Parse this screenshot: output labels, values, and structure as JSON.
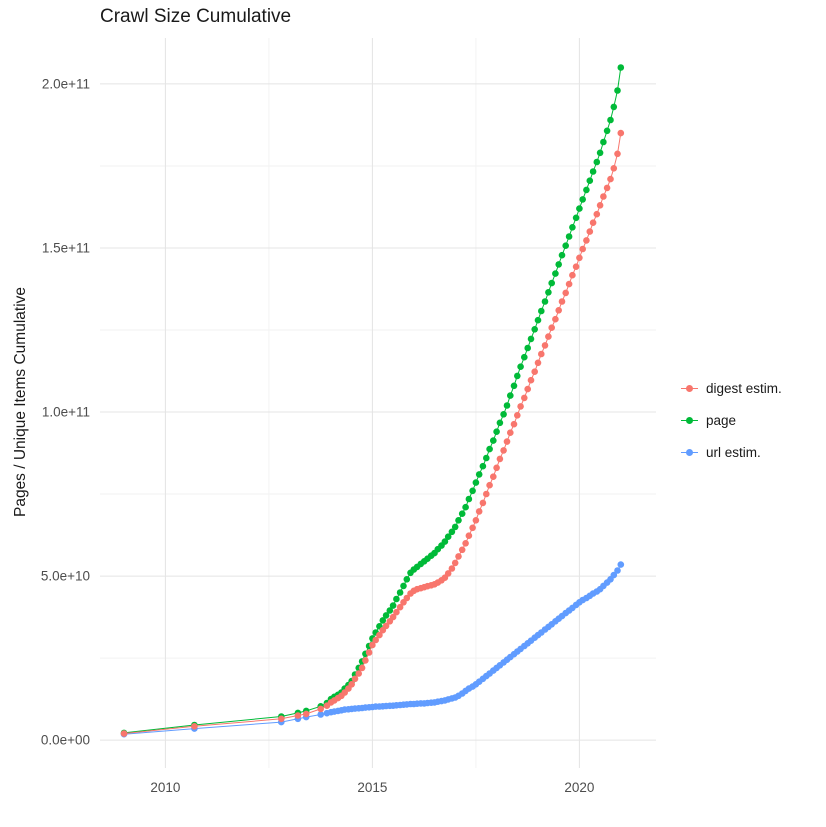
{
  "chart_data": {
    "type": "scatter",
    "title": "Crawl Size Cumulative",
    "xlabel": "",
    "ylabel": "Pages / Unique Items Cumulative",
    "legend_position": "right",
    "grid": true,
    "background": "#ffffff",
    "grid_major_color": "#E4E4E4",
    "grid_minor_color": "#F2F2F2",
    "tick_label_color": "#4D4D4D",
    "text_color": "#1A1A1A",
    "x_ticks": [
      2010,
      2015,
      2020
    ],
    "x_tick_labels": [
      "2010",
      "2015",
      "2020"
    ],
    "x_minor_ticks": [
      2012.5,
      2017.5
    ],
    "xlim": [
      2008.42,
      2021.85
    ],
    "y_unit_note": "y values stored in billions (1e9); axis labels shown in scientific notation",
    "y_ticks_billions": [
      0,
      50,
      100,
      150,
      200
    ],
    "y_tick_labels": [
      "0.0e+00",
      "5.0e+10",
      "1.0e+11",
      "1.5e+11",
      "2.0e+11"
    ],
    "y_minor_ticks_billions": [
      25,
      75,
      125,
      175
    ],
    "ylim_billions": [
      -8.5,
      214
    ],
    "series": [
      {
        "name": "digest estim.",
        "color": "#F8766D",
        "points": [
          [
            2009,
            2
          ],
          [
            2010.7,
            4.2
          ],
          [
            2012.8,
            6.5
          ],
          [
            2013.2,
            7.5
          ],
          [
            2013.4,
            8
          ],
          [
            2013.75,
            9.5
          ],
          [
            2013.9,
            10.5
          ],
          [
            2014,
            11.5
          ],
          [
            2014.08,
            12.1
          ],
          [
            2014.17,
            12.8
          ],
          [
            2014.25,
            13.5
          ],
          [
            2014.33,
            14.5
          ],
          [
            2014.42,
            15.7
          ],
          [
            2014.5,
            17
          ],
          [
            2014.58,
            18.7
          ],
          [
            2014.67,
            20.3
          ],
          [
            2014.75,
            22
          ],
          [
            2014.83,
            24.3
          ],
          [
            2014.92,
            26.7
          ],
          [
            2015,
            29
          ],
          [
            2015.08,
            30.5
          ],
          [
            2015.17,
            32
          ],
          [
            2015.25,
            33.5
          ],
          [
            2015.33,
            34.8
          ],
          [
            2015.42,
            36.2
          ],
          [
            2015.5,
            37.5
          ],
          [
            2015.58,
            39
          ],
          [
            2015.67,
            40.5
          ],
          [
            2015.75,
            42
          ],
          [
            2015.83,
            43.3
          ],
          [
            2015.92,
            44.7
          ],
          [
            2016,
            45.5
          ],
          [
            2016.08,
            46
          ],
          [
            2016.17,
            46.3
          ],
          [
            2016.25,
            46.6
          ],
          [
            2016.33,
            46.9
          ],
          [
            2016.42,
            47.2
          ],
          [
            2016.5,
            47.5
          ],
          [
            2016.58,
            48
          ],
          [
            2016.67,
            48.7
          ],
          [
            2016.75,
            49.5
          ],
          [
            2016.83,
            50.8
          ],
          [
            2016.92,
            52.3
          ],
          [
            2017,
            54
          ],
          [
            2017.08,
            56
          ],
          [
            2017.17,
            58
          ],
          [
            2017.25,
            60
          ],
          [
            2017.33,
            62.3
          ],
          [
            2017.42,
            64.7
          ],
          [
            2017.5,
            67
          ],
          [
            2017.58,
            69.7
          ],
          [
            2017.67,
            72.3
          ],
          [
            2017.75,
            75
          ],
          [
            2017.83,
            77.7
          ],
          [
            2017.92,
            80.3
          ],
          [
            2018,
            83
          ],
          [
            2018.08,
            85.7
          ],
          [
            2018.17,
            88.3
          ],
          [
            2018.25,
            91
          ],
          [
            2018.33,
            93.7
          ],
          [
            2018.42,
            96.3
          ],
          [
            2018.5,
            99
          ],
          [
            2018.58,
            101.7
          ],
          [
            2018.67,
            104.3
          ],
          [
            2018.75,
            107
          ],
          [
            2018.83,
            109.7
          ],
          [
            2018.92,
            112.3
          ],
          [
            2019,
            115
          ],
          [
            2019.08,
            117.7
          ],
          [
            2019.17,
            120.3
          ],
          [
            2019.25,
            123
          ],
          [
            2019.33,
            125.7
          ],
          [
            2019.42,
            128.3
          ],
          [
            2019.5,
            131
          ],
          [
            2019.58,
            133.7
          ],
          [
            2019.67,
            136.3
          ],
          [
            2019.75,
            139
          ],
          [
            2019.83,
            141.7
          ],
          [
            2019.92,
            144.3
          ],
          [
            2020,
            147
          ],
          [
            2020.08,
            149.7
          ],
          [
            2020.17,
            152.3
          ],
          [
            2020.25,
            155
          ],
          [
            2020.33,
            157.7
          ],
          [
            2020.42,
            160.3
          ],
          [
            2020.5,
            163
          ],
          [
            2020.58,
            165.7
          ],
          [
            2020.67,
            168.3
          ],
          [
            2020.75,
            171
          ],
          [
            2020.83,
            174.3
          ],
          [
            2020.92,
            178.7
          ],
          [
            2021,
            185
          ]
        ]
      },
      {
        "name": "page",
        "color": "#00BA38",
        "points": [
          [
            2009,
            2.2
          ],
          [
            2010.7,
            4.6
          ],
          [
            2012.8,
            7.2
          ],
          [
            2013.2,
            8.3
          ],
          [
            2013.4,
            8.9
          ],
          [
            2013.75,
            10.3
          ],
          [
            2013.9,
            11.3
          ],
          [
            2014,
            12.5
          ],
          [
            2014.08,
            13.2
          ],
          [
            2014.17,
            13.8
          ],
          [
            2014.25,
            14.5
          ],
          [
            2014.33,
            15.7
          ],
          [
            2014.42,
            16.8
          ],
          [
            2014.5,
            18
          ],
          [
            2014.58,
            20
          ],
          [
            2014.67,
            22
          ],
          [
            2014.75,
            24
          ],
          [
            2014.83,
            26.3
          ],
          [
            2014.92,
            28.7
          ],
          [
            2015,
            31
          ],
          [
            2015.08,
            32.8
          ],
          [
            2015.17,
            34.7
          ],
          [
            2015.25,
            36.5
          ],
          [
            2015.33,
            38
          ],
          [
            2015.42,
            39.5
          ],
          [
            2015.5,
            41
          ],
          [
            2015.58,
            43
          ],
          [
            2015.67,
            45
          ],
          [
            2015.75,
            47
          ],
          [
            2015.83,
            49
          ],
          [
            2015.92,
            51
          ],
          [
            2016,
            52
          ],
          [
            2016.08,
            52.8
          ],
          [
            2016.17,
            53.7
          ],
          [
            2016.25,
            54.5
          ],
          [
            2016.33,
            55.3
          ],
          [
            2016.42,
            56.2
          ],
          [
            2016.5,
            57
          ],
          [
            2016.58,
            58.2
          ],
          [
            2016.67,
            59.3
          ],
          [
            2016.75,
            60.5
          ],
          [
            2016.83,
            62
          ],
          [
            2016.92,
            63.5
          ],
          [
            2017,
            65
          ],
          [
            2017.08,
            67
          ],
          [
            2017.17,
            69
          ],
          [
            2017.25,
            71
          ],
          [
            2017.33,
            73.5
          ],
          [
            2017.42,
            76
          ],
          [
            2017.5,
            78.5
          ],
          [
            2017.58,
            81
          ],
          [
            2017.67,
            83.5
          ],
          [
            2017.75,
            86
          ],
          [
            2017.83,
            88.7
          ],
          [
            2017.92,
            91.3
          ],
          [
            2018,
            94
          ],
          [
            2018.08,
            96.7
          ],
          [
            2018.17,
            99.3
          ],
          [
            2018.25,
            102
          ],
          [
            2018.33,
            105
          ],
          [
            2018.42,
            108
          ],
          [
            2018.5,
            111
          ],
          [
            2018.58,
            113.8
          ],
          [
            2018.67,
            116.7
          ],
          [
            2018.75,
            119.5
          ],
          [
            2018.83,
            122.3
          ],
          [
            2018.92,
            125.2
          ],
          [
            2019,
            128
          ],
          [
            2019.08,
            130.8
          ],
          [
            2019.17,
            133.7
          ],
          [
            2019.25,
            136.5
          ],
          [
            2019.33,
            139.3
          ],
          [
            2019.42,
            142.2
          ],
          [
            2019.5,
            145
          ],
          [
            2019.58,
            147.8
          ],
          [
            2019.67,
            150.7
          ],
          [
            2019.75,
            153.5
          ],
          [
            2019.83,
            156.3
          ],
          [
            2019.92,
            159.2
          ],
          [
            2020,
            162
          ],
          [
            2020.08,
            164.8
          ],
          [
            2020.17,
            167.7
          ],
          [
            2020.25,
            170.5
          ],
          [
            2020.33,
            173.3
          ],
          [
            2020.42,
            176.2
          ],
          [
            2020.5,
            179
          ],
          [
            2020.58,
            182.3
          ],
          [
            2020.67,
            185.7
          ],
          [
            2020.75,
            189
          ],
          [
            2020.83,
            193
          ],
          [
            2020.92,
            198
          ],
          [
            2021,
            205
          ]
        ]
      },
      {
        "name": "url estim.",
        "color": "#619CFF",
        "points": [
          [
            2009,
            1.8
          ],
          [
            2010.7,
            3.5
          ],
          [
            2012.8,
            5.5
          ],
          [
            2013.2,
            6.5
          ],
          [
            2013.4,
            7
          ],
          [
            2013.75,
            7.8
          ],
          [
            2013.9,
            8.2
          ],
          [
            2014,
            8.5
          ],
          [
            2014.08,
            8.7
          ],
          [
            2014.17,
            8.9
          ],
          [
            2014.25,
            9.1
          ],
          [
            2014.33,
            9.3
          ],
          [
            2014.42,
            9.4
          ],
          [
            2014.5,
            9.5
          ],
          [
            2014.58,
            9.6
          ],
          [
            2014.67,
            9.7
          ],
          [
            2014.75,
            9.8
          ],
          [
            2014.83,
            9.9
          ],
          [
            2014.92,
            10
          ],
          [
            2015,
            10.1
          ],
          [
            2015.08,
            10.2
          ],
          [
            2015.17,
            10.25
          ],
          [
            2015.25,
            10.3
          ],
          [
            2015.33,
            10.4
          ],
          [
            2015.42,
            10.45
          ],
          [
            2015.5,
            10.5
          ],
          [
            2015.58,
            10.6
          ],
          [
            2015.67,
            10.7
          ],
          [
            2015.75,
            10.8
          ],
          [
            2015.83,
            10.9
          ],
          [
            2015.92,
            11
          ],
          [
            2016,
            11
          ],
          [
            2016.08,
            11.1
          ],
          [
            2016.17,
            11.2
          ],
          [
            2016.25,
            11.2
          ],
          [
            2016.33,
            11.3
          ],
          [
            2016.42,
            11.4
          ],
          [
            2016.5,
            11.5
          ],
          [
            2016.58,
            11.7
          ],
          [
            2016.67,
            11.9
          ],
          [
            2016.75,
            12.1
          ],
          [
            2016.83,
            12.4
          ],
          [
            2016.92,
            12.7
          ],
          [
            2017,
            13
          ],
          [
            2017.08,
            13.5
          ],
          [
            2017.17,
            14.2
          ],
          [
            2017.25,
            15
          ],
          [
            2017.33,
            15.7
          ],
          [
            2017.42,
            16.3
          ],
          [
            2017.5,
            17
          ],
          [
            2017.58,
            17.8
          ],
          [
            2017.67,
            18.7
          ],
          [
            2017.75,
            19.5
          ],
          [
            2017.83,
            20.3
          ],
          [
            2017.92,
            21.2
          ],
          [
            2018,
            22
          ],
          [
            2018.08,
            22.8
          ],
          [
            2018.17,
            23.7
          ],
          [
            2018.25,
            24.5
          ],
          [
            2018.33,
            25.3
          ],
          [
            2018.42,
            26.2
          ],
          [
            2018.5,
            27
          ],
          [
            2018.58,
            27.8
          ],
          [
            2018.67,
            28.7
          ],
          [
            2018.75,
            29.5
          ],
          [
            2018.83,
            30.3
          ],
          [
            2018.92,
            31.2
          ],
          [
            2019,
            32
          ],
          [
            2019.08,
            32.8
          ],
          [
            2019.17,
            33.7
          ],
          [
            2019.25,
            34.5
          ],
          [
            2019.33,
            35.3
          ],
          [
            2019.42,
            36.2
          ],
          [
            2019.5,
            37
          ],
          [
            2019.58,
            37.8
          ],
          [
            2019.67,
            38.7
          ],
          [
            2019.75,
            39.5
          ],
          [
            2019.83,
            40.3
          ],
          [
            2019.92,
            41.2
          ],
          [
            2020,
            42
          ],
          [
            2020.08,
            42.7
          ],
          [
            2020.17,
            43.3
          ],
          [
            2020.25,
            44
          ],
          [
            2020.33,
            44.7
          ],
          [
            2020.42,
            45.3
          ],
          [
            2020.5,
            46
          ],
          [
            2020.58,
            47
          ],
          [
            2020.67,
            48
          ],
          [
            2020.75,
            49
          ],
          [
            2020.83,
            50.3
          ],
          [
            2020.92,
            51.7
          ],
          [
            2021,
            53.5
          ]
        ]
      }
    ]
  }
}
